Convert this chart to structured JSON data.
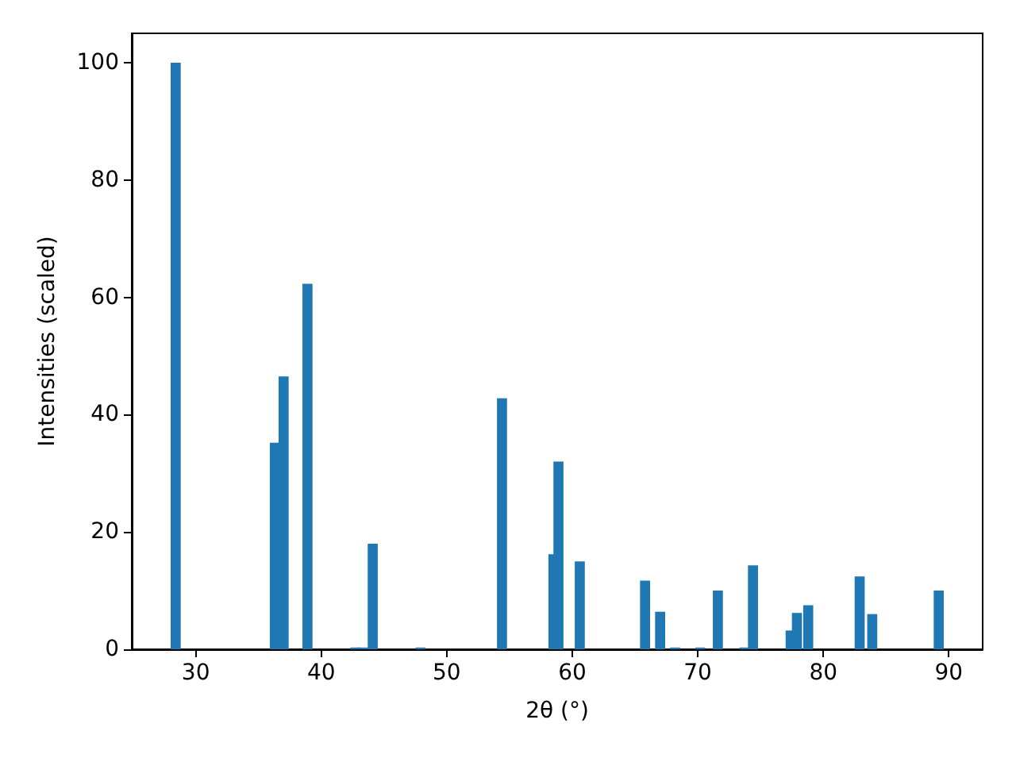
{
  "chart_data": {
    "type": "bar",
    "xlabel": "2θ (°)",
    "ylabel": "Intensities (scaled)",
    "color": "#1f77b4",
    "x": [
      28.4,
      36.3,
      37.0,
      38.9,
      42.7,
      43.3,
      44.1,
      47.9,
      54.4,
      58.5,
      58.9,
      60.6,
      65.8,
      67.0,
      68.2,
      70.2,
      71.6,
      73.7,
      74.4,
      77.4,
      77.9,
      78.8,
      82.9,
      83.9,
      89.2
    ],
    "values": [
      100,
      35.2,
      46.5,
      62.3,
      0.3,
      0.3,
      18,
      0.3,
      42.8,
      16.2,
      32,
      15,
      11.7,
      6.4,
      0.3,
      0.3,
      10,
      0.3,
      14.3,
      3.2,
      6.2,
      7.5,
      12.4,
      6,
      10
    ],
    "xlim": [
      24.9,
      92.7
    ],
    "xticks": [
      30,
      40,
      50,
      60,
      70,
      80,
      90
    ],
    "ylim": [
      0,
      105
    ],
    "yticks": [
      0,
      20,
      40,
      60,
      80,
      100
    ]
  }
}
